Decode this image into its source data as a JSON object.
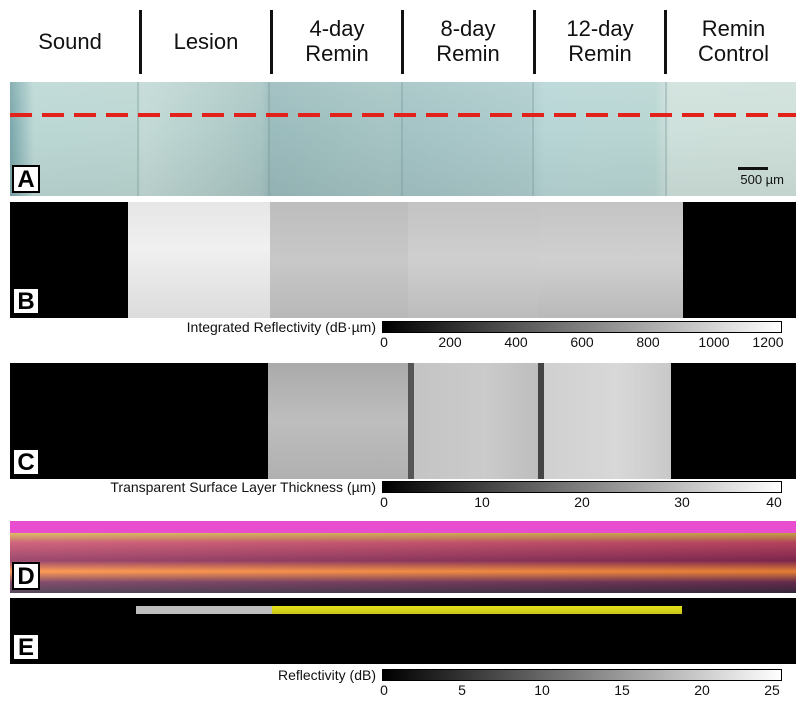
{
  "columns": [
    {
      "label": "Sound"
    },
    {
      "label": "Lesion"
    },
    {
      "label": "4-day\nRemin"
    },
    {
      "label": "8-day\nRemin"
    },
    {
      "label": "12-day\nRemin"
    },
    {
      "label": "Remin\nControl"
    }
  ],
  "panels": {
    "A": {
      "letter": "A",
      "scale_label": "500 µm"
    },
    "B": {
      "letter": "B"
    },
    "C": {
      "letter": "C"
    },
    "D": {
      "letter": "D"
    },
    "E": {
      "letter": "E"
    }
  },
  "colorbars": [
    {
      "title": "Integrated Reflectivity (dB·µm)",
      "ticks": [
        "0",
        "200",
        "400",
        "600",
        "800",
        "1000",
        "1200"
      ]
    },
    {
      "title": "Transparent Surface Layer Thickness (µm)",
      "ticks": [
        "0",
        "10",
        "20",
        "30",
        "40"
      ]
    },
    {
      "title": "Reflectivity (dB)",
      "ticks": [
        "0",
        "5",
        "10",
        "15",
        "20",
        "25"
      ]
    }
  ],
  "colors": {
    "dashed_line": "#e2211a",
    "panel_d_top": "#e84ccf",
    "panel_e_highlight": "#e6e21a"
  }
}
